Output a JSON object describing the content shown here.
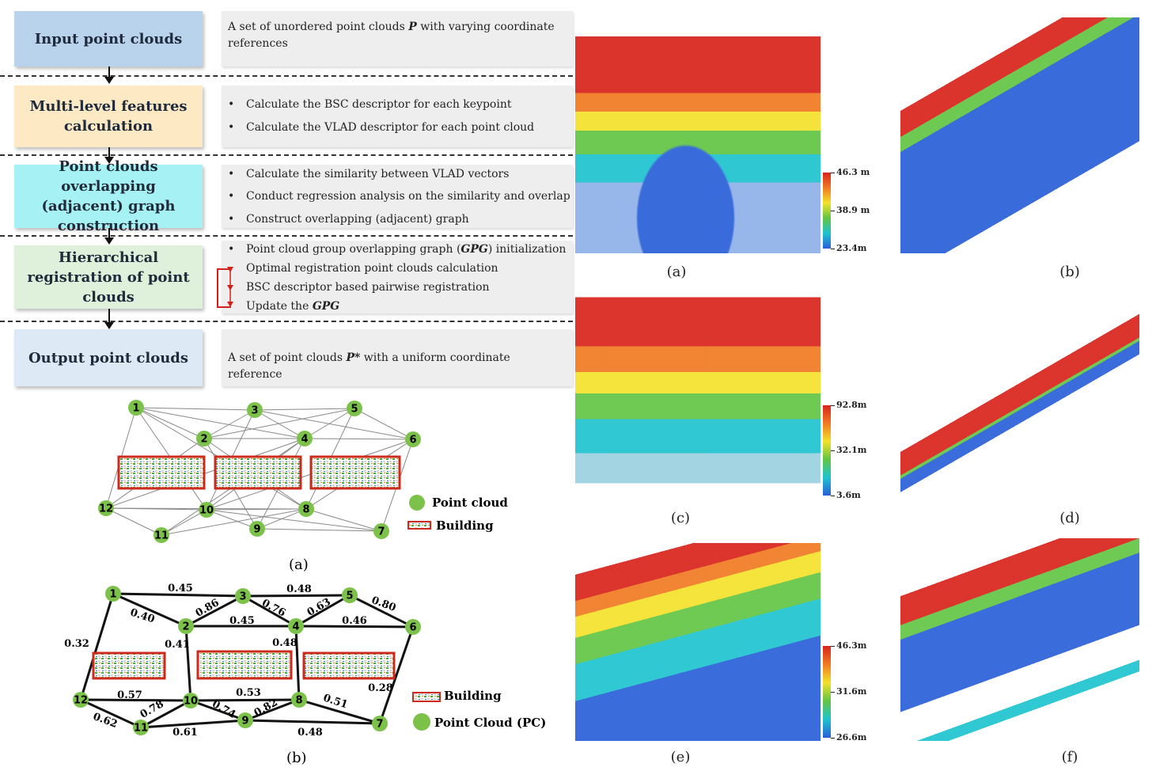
{
  "flowchart": {
    "steps": [
      {
        "title": "Input point clouds",
        "desc_html": "A set of unordered  point clouds <b><i>P</i></b> with varying coordinate references"
      },
      {
        "title": "Multi-level features calculation",
        "bullets": [
          "Calculate the BSC descriptor for each keypoint",
          "Calculate the VLAD descriptor for each point cloud"
        ]
      },
      {
        "title": "Point clouds overlapping (adjacent) graph construction",
        "bullets": [
          "Calculate the similarity  between VLAD vectors",
          "Conduct regression analysis on the similarity and overlap",
          "Construct overlapping (adjacent) graph"
        ]
      },
      {
        "title": "Hierarchical registration of point clouds",
        "bullet_html": "Point cloud group overlapping graph (<b><i>GPG</i></b>) initialization",
        "loop_lines": [
          "Optimal registration point clouds calculation",
          "BSC descriptor based pairwise registration"
        ],
        "loop_last_html": "Update the  <b><i>GPG</i></b>"
      },
      {
        "title": "Output point clouds",
        "desc_html": "A set of point clouds <b><i>P*</i></b> with a uniform coordinate reference"
      }
    ],
    "colors": [
      "#b9d3ec",
      "#fde9c4",
      "#a6f1f4",
      "#dff0db",
      "#ddeaf6"
    ]
  },
  "graph_a": {
    "caption": "(a)",
    "nodes": [
      "1",
      "2",
      "3",
      "4",
      "5",
      "6",
      "7",
      "8",
      "9",
      "10",
      "11",
      "12"
    ],
    "legend": {
      "point_cloud": "Point cloud",
      "building": "Building"
    }
  },
  "graph_b": {
    "caption": "(b)",
    "nodes": [
      "1",
      "2",
      "3",
      "4",
      "5",
      "6",
      "7",
      "8",
      "9",
      "10",
      "11",
      "12"
    ],
    "weights": [
      "0.45",
      "0.48",
      "0.40",
      "0.86",
      "0.76",
      "0.63",
      "0.80",
      "0.45",
      "0.46",
      "0.41",
      "0.48",
      "0.32",
      "0.28",
      "0.57",
      "0.53",
      "0.78",
      "0.74",
      "0.82",
      "0.51",
      "0.62",
      "0.61",
      "0.48"
    ],
    "legend": {
      "building": "Building",
      "point_cloud": "Point Cloud (PC)"
    }
  },
  "panels": [
    {
      "caption": "(a)",
      "scale": [
        "46.3 m",
        "38.9 m",
        "23.4m"
      ]
    },
    {
      "caption": "(b)"
    },
    {
      "caption": "(c)",
      "scale": [
        "92.8m",
        "32.1m",
        "3.6m"
      ]
    },
    {
      "caption": "(d)"
    },
    {
      "caption": "(e)",
      "scale": [
        "46.3m",
        "31.6m",
        "26.6m"
      ]
    },
    {
      "caption": "(f)"
    }
  ]
}
